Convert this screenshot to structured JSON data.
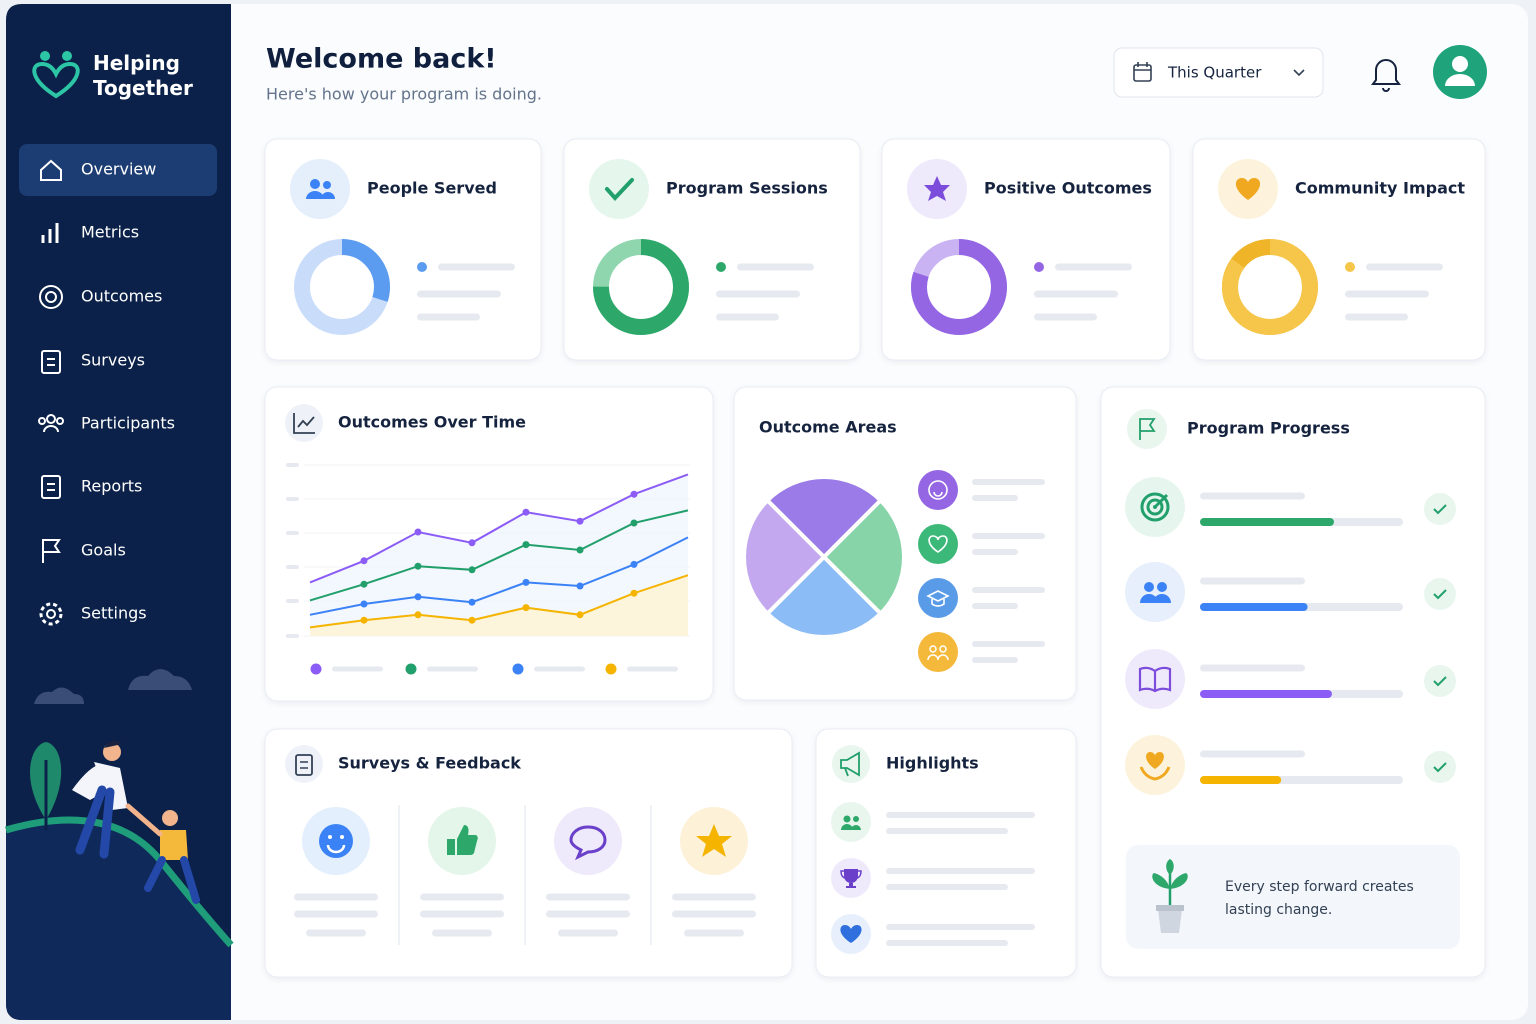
{
  "sidebar": {
    "brand": "Helping Together",
    "nav": [
      "Overview",
      "Metrics",
      "Outcomes",
      "Surveys",
      "Participants",
      "Reports",
      "Goals",
      "Settings"
    ],
    "active": 0
  },
  "header": {
    "title": "Welcome back!",
    "subtitle": "Here's how your program is doing.",
    "period": "This Quarter"
  },
  "stat_cards": [
    {
      "title": "People Served",
      "value": 30,
      "color": "#5b9cf0",
      "track": "#c9ddfb"
    },
    {
      "title": "Program Sessions",
      "value": 75,
      "color": "#2ea86a",
      "track": "#8fd6ae"
    },
    {
      "title": "Positive Outcomes",
      "value": 80,
      "color": "#9466e4",
      "track": "#c9b3f2"
    },
    {
      "title": "Community Impact",
      "value": 85,
      "color": "#f6c64a",
      "track": "#f0b429"
    }
  ],
  "line_chart": {
    "title": "Outcomes Over Time",
    "ylim": [
      0,
      100
    ],
    "series": [
      {
        "color": "#8b5cf6",
        "values": [
          32,
          44,
          60,
          54,
          71,
          66,
          81,
          92
        ]
      },
      {
        "color": "#22a06b",
        "values": [
          22,
          31,
          41,
          39,
          53,
          50,
          65,
          72
        ]
      },
      {
        "color": "#3b82f6",
        "values": [
          14,
          20,
          24,
          21,
          32,
          30,
          42,
          57
        ]
      },
      {
        "color": "#f4b400",
        "values": [
          7,
          11,
          14,
          11,
          18,
          14,
          26,
          36
        ]
      }
    ]
  },
  "pie_chart": {
    "title": "Outcome Areas",
    "values": [
      25,
      25,
      25,
      25
    ],
    "colors": [
      "#9b7be8",
      "#86d4a8",
      "#8bbcf5",
      "#c3a8f0"
    ]
  },
  "progress": {
    "title": "Program Progress",
    "xlim": [
      0,
      100
    ],
    "items": [
      {
        "value": 66,
        "color": "#2ea86a"
      },
      {
        "value": 53,
        "color": "#3b82f6"
      },
      {
        "value": 65,
        "color": "#8b5cf6"
      },
      {
        "value": 40,
        "color": "#f4b400"
      }
    ]
  },
  "surveys": {
    "title": "Surveys & Feedback"
  },
  "highlights": {
    "title": "Highlights"
  },
  "quote": "Every step forward creates lasting change."
}
